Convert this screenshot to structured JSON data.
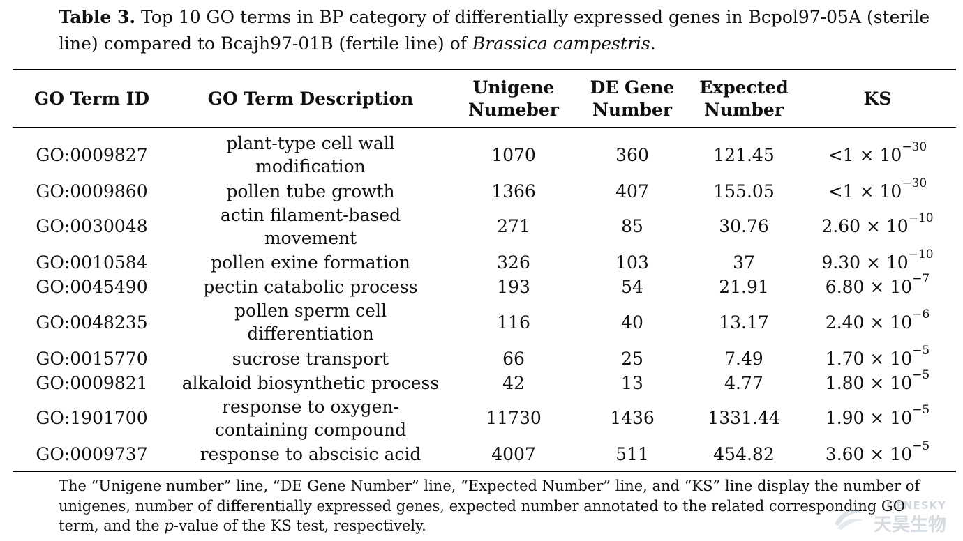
{
  "caption": {
    "label": "Table 3.",
    "text_before_italic": " Top 10 GO terms in BP category of differentially expressed genes in Bcpol97-05A (sterile line) compared to Bcajh97-01B (fertile line) of ",
    "italic": "Brassica campestris",
    "text_after_italic": "."
  },
  "table": {
    "headers": {
      "go_id": "GO Term ID",
      "description": "GO Term Description",
      "unigene": "Unigene Numeber",
      "de_gene": "DE Gene Number",
      "expected": "Expected Number",
      "ks": "KS"
    },
    "rows": [
      {
        "go_id": "GO:0009827",
        "description": "plant-type cell wall modification",
        "unigene": "1070",
        "de_gene": "360",
        "expected": "121.45",
        "ks_mantissa": "<1",
        "ks_exponent": "−30"
      },
      {
        "go_id": "GO:0009860",
        "description": "pollen tube growth",
        "unigene": "1366",
        "de_gene": "407",
        "expected": "155.05",
        "ks_mantissa": "<1",
        "ks_exponent": "−30"
      },
      {
        "go_id": "GO:0030048",
        "description": "actin filament-based movement",
        "unigene": "271",
        "de_gene": "85",
        "expected": "30.76",
        "ks_mantissa": "2.60",
        "ks_exponent": "−10"
      },
      {
        "go_id": "GO:0010584",
        "description": "pollen exine formation",
        "unigene": "326",
        "de_gene": "103",
        "expected": "37",
        "ks_mantissa": "9.30",
        "ks_exponent": "−10"
      },
      {
        "go_id": "GO:0045490",
        "description": "pectin catabolic process",
        "unigene": "193",
        "de_gene": "54",
        "expected": "21.91",
        "ks_mantissa": "6.80",
        "ks_exponent": "−7"
      },
      {
        "go_id": "GO:0048235",
        "description": "pollen sperm cell differentiation",
        "unigene": "116",
        "de_gene": "40",
        "expected": "13.17",
        "ks_mantissa": "2.40",
        "ks_exponent": "−6"
      },
      {
        "go_id": "GO:0015770",
        "description": "sucrose transport",
        "unigene": "66",
        "de_gene": "25",
        "expected": "7.49",
        "ks_mantissa": "1.70",
        "ks_exponent": "−5"
      },
      {
        "go_id": "GO:0009821",
        "description": "alkaloid biosynthetic process",
        "unigene": "42",
        "de_gene": "13",
        "expected": "4.77",
        "ks_mantissa": "1.80",
        "ks_exponent": "−5"
      },
      {
        "go_id": "GO:1901700",
        "description": "response to oxygen-containing compound",
        "unigene": "11730",
        "de_gene": "1436",
        "expected": "1331.44",
        "ks_mantissa": "1.90",
        "ks_exponent": "−5"
      },
      {
        "go_id": "GO:0009737",
        "description": "response to abscisic acid",
        "unigene": "4007",
        "de_gene": "511",
        "expected": "454.82",
        "ks_mantissa": "3.60",
        "ks_exponent": "−5"
      }
    ]
  },
  "footnote": {
    "text_before_italic": "The “Unigene number” line, “DE Gene Number” line, “Expected Number” line, and “KS” line display the number of unigenes, number of differentially expressed genes, expected number annotated to the related corresponding GO term, and the ",
    "italic": "p",
    "text_after_italic": "-value of the KS test, respectively."
  },
  "watermark": {
    "text_en": "GENESKY",
    "text_cn": "天昊生物"
  },
  "colors": {
    "text": "#111111",
    "rule": "#000000",
    "watermark": "#8a99aa"
  }
}
